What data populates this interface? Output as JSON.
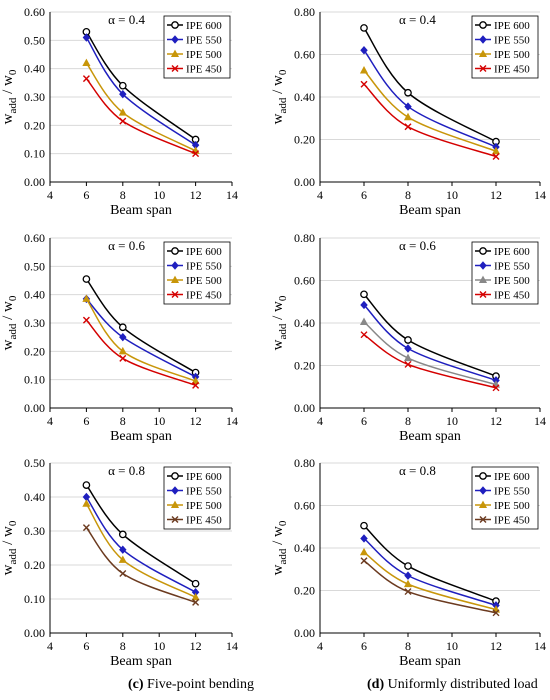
{
  "captions": {
    "left_letter": "(c)",
    "left_text": "Five-point bending",
    "right_letter": "(d)",
    "right_text": "Uniformly distributed load"
  },
  "chart_data": [
    {
      "type": "line",
      "annotation": "α = 0.4",
      "xlabel": "Beam span",
      "ylabel_main": "w",
      "ylabel_sub1": "add",
      "ylabel_mid": "/ w",
      "ylabel_sub2": "0",
      "xlim": [
        4,
        14
      ],
      "xticks": [
        4,
        6,
        8,
        10,
        12,
        14
      ],
      "xtick_labels": [
        "4",
        "6",
        "8",
        "10",
        "12",
        "14"
      ],
      "ylim": [
        0,
        0.6
      ],
      "yticks": [
        0,
        0.1,
        0.2,
        0.3,
        0.4,
        0.5,
        0.6
      ],
      "ytick_labels": [
        "0.00",
        "0.10",
        "0.20",
        "0.30",
        "0.40",
        "0.50",
        "0.60"
      ],
      "x": [
        6,
        8,
        12
      ],
      "legend_position": "top-right",
      "series": [
        {
          "name": "IPE 600",
          "marker": "circle",
          "color": "#000000",
          "values": [
            0.53,
            0.34,
            0.15
          ]
        },
        {
          "name": "IPE 550",
          "marker": "diamond",
          "color": "#1f1fbf",
          "values": [
            0.51,
            0.31,
            0.13
          ]
        },
        {
          "name": "IPE 500",
          "marker": "triangle",
          "color": "#c8960a",
          "values": [
            0.42,
            0.245,
            0.11
          ]
        },
        {
          "name": "IPE 450",
          "marker": "x",
          "color": "#d40000",
          "values": [
            0.365,
            0.215,
            0.1
          ]
        }
      ]
    },
    {
      "type": "line",
      "annotation": "α = 0.4",
      "xlabel": "Beam span",
      "ylabel_main": "w",
      "ylabel_sub1": "add",
      "ylabel_mid": "/ w",
      "ylabel_sub2": "0",
      "xlim": [
        4,
        14
      ],
      "xticks": [
        4,
        6,
        8,
        10,
        12,
        14
      ],
      "xtick_labels": [
        "4",
        "6",
        "8",
        "10",
        "12",
        "14"
      ],
      "ylim": [
        0,
        0.8
      ],
      "yticks": [
        0,
        0.2,
        0.4,
        0.6,
        0.8
      ],
      "ytick_labels": [
        "0.00",
        "0.20",
        "0.40",
        "0.60",
        "0.80"
      ],
      "x": [
        6,
        8,
        12
      ],
      "legend_position": "top-right",
      "series": [
        {
          "name": "IPE 600",
          "marker": "circle",
          "color": "#000000",
          "values": [
            0.725,
            0.42,
            0.19
          ]
        },
        {
          "name": "IPE 550",
          "marker": "diamond",
          "color": "#1f1fbf",
          "values": [
            0.62,
            0.355,
            0.165
          ]
        },
        {
          "name": "IPE 500",
          "marker": "triangle",
          "color": "#c8960a",
          "values": [
            0.525,
            0.305,
            0.145
          ]
        },
        {
          "name": "IPE 450",
          "marker": "x",
          "color": "#d40000",
          "values": [
            0.46,
            0.26,
            0.12
          ]
        }
      ]
    },
    {
      "type": "line",
      "annotation": "α = 0.6",
      "xlabel": "Beam span",
      "ylabel_main": "w",
      "ylabel_sub1": "add",
      "ylabel_mid": "/ w",
      "ylabel_sub2": "0",
      "xlim": [
        4,
        14
      ],
      "xticks": [
        4,
        6,
        8,
        10,
        12,
        14
      ],
      "xtick_labels": [
        "4",
        "6",
        "8",
        "10",
        "12",
        "14"
      ],
      "ylim": [
        0,
        0.6
      ],
      "yticks": [
        0,
        0.1,
        0.2,
        0.3,
        0.4,
        0.5,
        0.6
      ],
      "ytick_labels": [
        "0.00",
        "0.10",
        "0.20",
        "0.30",
        "0.40",
        "0.50",
        "0.60"
      ],
      "x": [
        6,
        8,
        12
      ],
      "legend_position": "top-right",
      "series": [
        {
          "name": "IPE 600",
          "marker": "circle",
          "color": "#000000",
          "values": [
            0.455,
            0.285,
            0.125
          ]
        },
        {
          "name": "IPE 550",
          "marker": "diamond",
          "color": "#1f1fbf",
          "values": [
            0.385,
            0.25,
            0.11
          ]
        },
        {
          "name": "IPE 500",
          "marker": "triangle",
          "color": "#c8960a",
          "values": [
            0.385,
            0.2,
            0.095
          ]
        },
        {
          "name": "IPE 450",
          "marker": "x",
          "color": "#d40000",
          "values": [
            0.31,
            0.175,
            0.08
          ]
        }
      ]
    },
    {
      "type": "line",
      "annotation": "α = 0.6",
      "xlabel": "Beam span",
      "ylabel_main": "w",
      "ylabel_sub1": "add",
      "ylabel_mid": "/ w",
      "ylabel_sub2": "0",
      "xlim": [
        4,
        14
      ],
      "xticks": [
        4,
        6,
        8,
        10,
        12,
        14
      ],
      "xtick_labels": [
        "4",
        "6",
        "8",
        "10",
        "12",
        "14"
      ],
      "ylim": [
        0,
        0.8
      ],
      "yticks": [
        0,
        0.2,
        0.4,
        0.6,
        0.8
      ],
      "ytick_labels": [
        "0.00",
        "0.20",
        "0.40",
        "0.60",
        "0.80"
      ],
      "x": [
        6,
        8,
        12
      ],
      "legend_position": "top-right",
      "series": [
        {
          "name": "IPE 600",
          "marker": "circle",
          "color": "#000000",
          "values": [
            0.535,
            0.32,
            0.15
          ]
        },
        {
          "name": "IPE 550",
          "marker": "diamond",
          "color": "#1f1fbf",
          "values": [
            0.485,
            0.28,
            0.13
          ]
        },
        {
          "name": "IPE 500",
          "marker": "triangle",
          "color": "#888888",
          "values": [
            0.405,
            0.235,
            0.11
          ]
        },
        {
          "name": "IPE 450",
          "marker": "x",
          "color": "#d40000",
          "values": [
            0.345,
            0.205,
            0.095
          ]
        }
      ]
    },
    {
      "type": "line",
      "annotation": "α = 0.8",
      "xlabel": "Beam span",
      "ylabel_main": "w",
      "ylabel_sub1": "add",
      "ylabel_mid": "/ w",
      "ylabel_sub2": "0",
      "xlim": [
        4,
        14
      ],
      "xticks": [
        4,
        6,
        8,
        10,
        12,
        14
      ],
      "xtick_labels": [
        "4",
        "6",
        "8",
        "10",
        "12",
        "14"
      ],
      "ylim": [
        0,
        0.5
      ],
      "yticks": [
        0,
        0.1,
        0.2,
        0.3,
        0.4,
        0.5
      ],
      "ytick_labels": [
        "0.00",
        "0.10",
        "0.20",
        "0.30",
        "0.40",
        "0.50"
      ],
      "x": [
        6,
        8,
        12
      ],
      "legend_position": "top-right",
      "series": [
        {
          "name": "IPE 600",
          "marker": "circle",
          "color": "#000000",
          "values": [
            0.435,
            0.29,
            0.145
          ]
        },
        {
          "name": "IPE 550",
          "marker": "diamond",
          "color": "#1f1fbf",
          "values": [
            0.4,
            0.245,
            0.12
          ]
        },
        {
          "name": "IPE 500",
          "marker": "triangle",
          "color": "#c8960a",
          "values": [
            0.38,
            0.215,
            0.105
          ]
        },
        {
          "name": "IPE 450",
          "marker": "x",
          "color": "#6b3a1f",
          "values": [
            0.31,
            0.175,
            0.09
          ]
        }
      ]
    },
    {
      "type": "line",
      "annotation": "α = 0.8",
      "xlabel": "Beam span",
      "ylabel_main": "w",
      "ylabel_sub1": "add",
      "ylabel_mid": "/ w",
      "ylabel_sub2": "0",
      "xlim": [
        4,
        14
      ],
      "xticks": [
        4,
        6,
        8,
        10,
        12,
        14
      ],
      "xtick_labels": [
        "4",
        "6",
        "8",
        "10",
        "12",
        "14"
      ],
      "ylim": [
        0,
        0.8
      ],
      "yticks": [
        0,
        0.2,
        0.4,
        0.6,
        0.8
      ],
      "ytick_labels": [
        "0.00",
        "0.20",
        "0.40",
        "0.60",
        "0.80"
      ],
      "x": [
        6,
        8,
        12
      ],
      "legend_position": "top-right",
      "series": [
        {
          "name": "IPE 600",
          "marker": "circle",
          "color": "#000000",
          "values": [
            0.505,
            0.315,
            0.15
          ]
        },
        {
          "name": "IPE 550",
          "marker": "diamond",
          "color": "#1f1fbf",
          "values": [
            0.445,
            0.27,
            0.13
          ]
        },
        {
          "name": "IPE 500",
          "marker": "triangle",
          "color": "#c8960a",
          "values": [
            0.38,
            0.23,
            0.11
          ]
        },
        {
          "name": "IPE 450",
          "marker": "x",
          "color": "#6b3a1f",
          "values": [
            0.34,
            0.195,
            0.095
          ]
        }
      ]
    }
  ]
}
